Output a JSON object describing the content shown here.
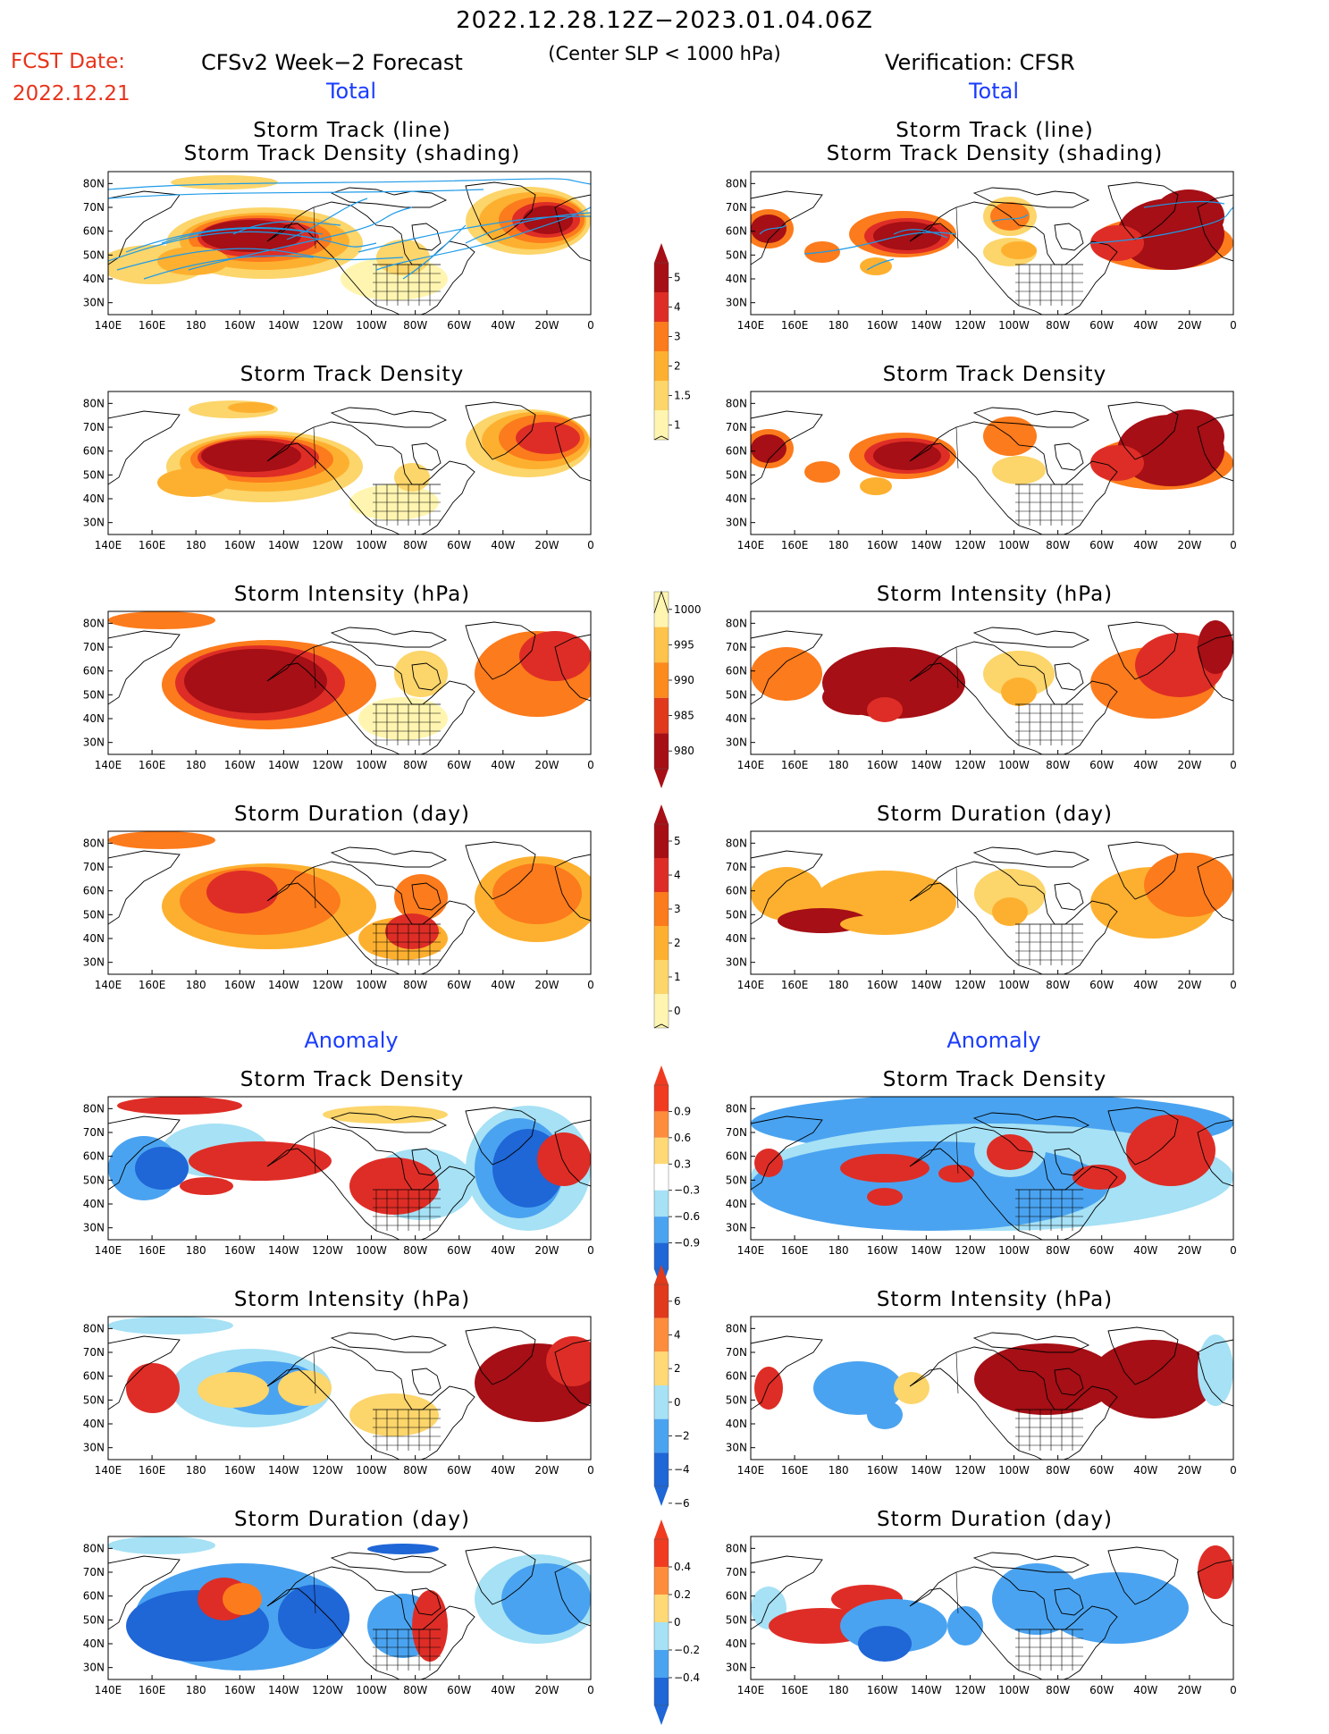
{
  "header": {
    "title": "2022.12.28.12Z−2023.01.04.06Z",
    "subtitle": "(Center SLP < 1000 hPa)",
    "fcst_label": "FCST Date:",
    "fcst_date": "2022.12.21",
    "model_label": "CFSv2 Week−2 Forecast",
    "verification_label": "Verification: CFSR"
  },
  "sections": {
    "total": "Total",
    "anomaly": "Anomaly"
  },
  "panel_titles": {
    "track_line": "Storm Track (line)",
    "track_shading": "Storm Track Density (shading)",
    "density": "Storm Track Density",
    "intensity": "Storm Intensity (hPa)",
    "duration": "Storm Duration (day)"
  },
  "axes": {
    "lon_labels": [
      "140E",
      "160E",
      "180",
      "160W",
      "140W",
      "120W",
      "100W",
      "80W",
      "60W",
      "40W",
      "20W",
      "0"
    ],
    "lat_labels": [
      "80N",
      "70N",
      "60N",
      "50N",
      "40N",
      "30N"
    ],
    "lat_values": [
      80,
      70,
      60,
      50,
      40,
      30
    ]
  },
  "colorbars": {
    "density_total": {
      "labels": [
        "5",
        "4",
        "3",
        "2",
        "1.5",
        "1"
      ],
      "colors": [
        "#a50f15",
        "#de2d26",
        "#fc7b1c",
        "#fdb02f",
        "#fcd56b",
        "#fff5b0"
      ]
    },
    "intensity_total": {
      "labels": [
        "1000",
        "995",
        "990",
        "985",
        "980"
      ],
      "colors": [
        "#fff5b0",
        "#fdc34a",
        "#fc8a1c",
        "#e0391b",
        "#a50f15"
      ]
    },
    "duration_total": {
      "labels": [
        "5",
        "4",
        "3",
        "2",
        "1",
        "0"
      ],
      "colors": [
        "#a50f15",
        "#de2d26",
        "#fc7b1c",
        "#fdb02f",
        "#fcd56b",
        "#fff5b0"
      ]
    },
    "density_anom": {
      "labels": [
        "0.9",
        "0.6",
        "0.3",
        "−0.3",
        "−0.6",
        "−0.9"
      ],
      "colors": [
        "#f03b20",
        "#fd8d3c",
        "#fed976",
        "#ffffff",
        "#a6e1f5",
        "#4aa3f0",
        "#1f66d6"
      ]
    },
    "intensity_anom": {
      "labels": [
        "6",
        "4",
        "2",
        "0",
        "−2",
        "−4",
        "−6"
      ],
      "colors": [
        "#e0391b",
        "#fd8d3c",
        "#fed976",
        "#a6e1f5",
        "#4aa3f0",
        "#1f66d6"
      ]
    },
    "duration_anom": {
      "labels": [
        "0.4",
        "0.2",
        "0",
        "−0.2",
        "−0.4"
      ],
      "colors": [
        "#f03b20",
        "#fd8d3c",
        "#fed976",
        "#a6e1f5",
        "#4aa3f0",
        "#1f66d6"
      ]
    }
  },
  "palette": {
    "dark_red": "#a50f15",
    "red": "#de2d26",
    "orange": "#fc7b1c",
    "light_orange": "#fdb02f",
    "yellow": "#fcd56b",
    "pale_yellow": "#fff5b0",
    "deep_blue": "#1f66d6",
    "mid_blue": "#4aa3f0",
    "light_blue": "#a6e1f5",
    "track_line": "#1e9be8",
    "highlight_red": "#e8331b",
    "section_blue": "#1a3cff"
  }
}
